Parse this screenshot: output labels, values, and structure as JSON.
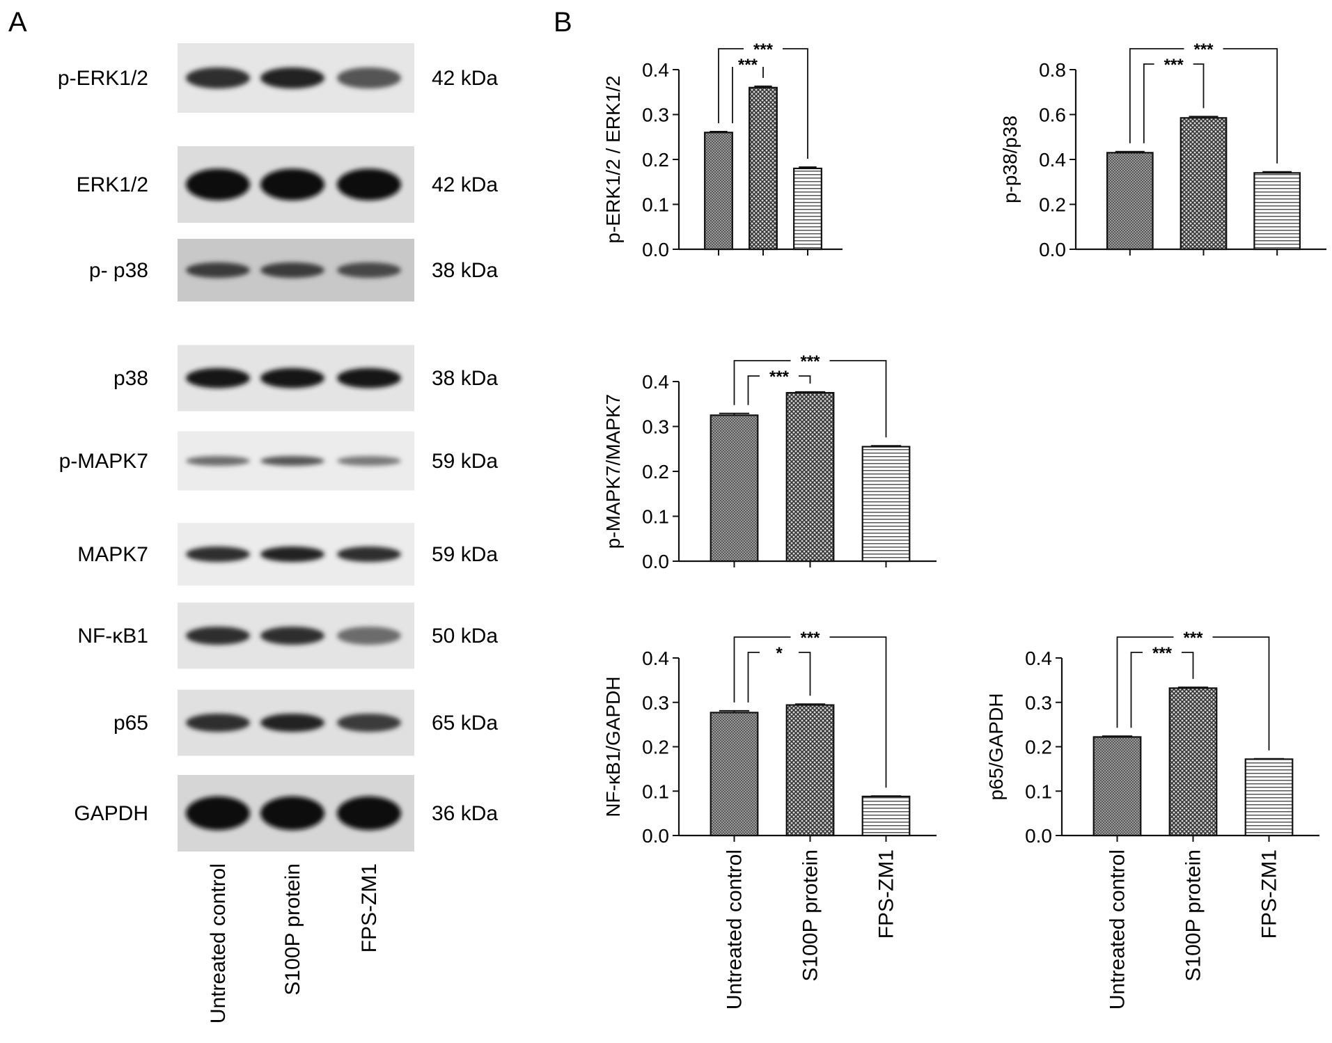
{
  "panel_a": {
    "letter": "A",
    "rows": [
      {
        "protein": "p-ERK1/2",
        "size": "42 kDa",
        "bands": [
          0.85,
          0.9,
          0.7
        ],
        "thick": 0.55,
        "bg": "#e6e6e6"
      },
      {
        "protein": "ERK1/2",
        "size": "42 kDa",
        "bands": [
          1.0,
          1.0,
          1.0
        ],
        "thick": 0.75,
        "bg": "#dcdcdc"
      },
      {
        "protein": "p- p38",
        "size": "38 kDa",
        "bands": [
          0.8,
          0.8,
          0.75
        ],
        "thick": 0.45,
        "bg": "#c8c8c8"
      },
      {
        "protein": "p38",
        "size": "38 kDa",
        "bands": [
          0.95,
          0.95,
          0.95
        ],
        "thick": 0.55,
        "bg": "#e4e4e4"
      },
      {
        "protein": "p-MAPK7",
        "size": "59 kDa",
        "bands": [
          0.6,
          0.7,
          0.55
        ],
        "thick": 0.3,
        "bg": "#ececec"
      },
      {
        "protein": "MAPK7",
        "size": "59 kDa",
        "bands": [
          0.85,
          0.9,
          0.85
        ],
        "thick": 0.45,
        "bg": "#ececec"
      },
      {
        "protein": "NF-κB1",
        "size": "50 kDa",
        "bands": [
          0.85,
          0.85,
          0.6
        ],
        "thick": 0.5,
        "bg": "#e4e4e4"
      },
      {
        "protein": "p65",
        "size": "65 kDa",
        "bands": [
          0.85,
          0.9,
          0.8
        ],
        "thick": 0.5,
        "bg": "#e0e0e0"
      },
      {
        "protein": "GAPDH",
        "size": "36 kDa",
        "bands": [
          1.0,
          1.0,
          1.0
        ],
        "thick": 0.8,
        "bg": "#d6d6d6"
      }
    ],
    "lanes": [
      "Untreated control",
      "S100P protein",
      "FPS-ZM1"
    ]
  },
  "panel_b": {
    "letter": "B"
  },
  "chart_data": [
    {
      "type": "bar",
      "categories": [
        "Untreated control",
        "S100P protein",
        "FPS-ZM1"
      ],
      "values": [
        0.26,
        0.36,
        0.18
      ],
      "errors": [
        0.002,
        0.003,
        0.003
      ],
      "ylabel": "p-ERK1/2 / ERK1/2",
      "ylim": [
        0,
        0.4
      ],
      "yticks": [
        "0.0",
        "0.1",
        "0.2",
        "0.3",
        "0.4"
      ],
      "tick_values": [
        0,
        0.1,
        0.2,
        0.3,
        0.4
      ],
      "patterns": [
        "fine",
        "coarse",
        "horiz"
      ],
      "significance": [
        {
          "from": 0,
          "to": 1,
          "label": "***"
        },
        {
          "from": 0,
          "to": 2,
          "label": "***"
        }
      ],
      "show_xlabels": false
    },
    {
      "type": "bar",
      "categories": [
        "Untreated control",
        "S100P protein",
        "FPS-ZM1"
      ],
      "values": [
        0.43,
        0.585,
        0.34
      ],
      "errors": [
        0.005,
        0.006,
        0.005
      ],
      "ylabel": "p-p38/p38",
      "ylim": [
        0,
        0.8
      ],
      "yticks": [
        "0.0",
        "0.2",
        "0.4",
        "0.6",
        "0.8"
      ],
      "tick_values": [
        0,
        0.2,
        0.4,
        0.6,
        0.8
      ],
      "patterns": [
        "fine",
        "coarse",
        "horiz"
      ],
      "significance": [
        {
          "from": 0,
          "to": 1,
          "label": "***"
        },
        {
          "from": 0,
          "to": 2,
          "label": "***"
        }
      ],
      "show_xlabels": false
    },
    {
      "type": "bar",
      "categories": [
        "Untreated control",
        "S100P protein",
        "FPS-ZM1"
      ],
      "values": [
        0.325,
        0.375,
        0.255
      ],
      "errors": [
        0.004,
        0.002,
        0.002
      ],
      "ylabel": "p-MAPK7/MAPK7",
      "ylim": [
        0,
        0.4
      ],
      "yticks": [
        "0.0",
        "0.1",
        "0.2",
        "0.3",
        "0.4"
      ],
      "tick_values": [
        0,
        0.1,
        0.2,
        0.3,
        0.4
      ],
      "patterns": [
        "fine",
        "coarse",
        "horiz"
      ],
      "significance": [
        {
          "from": 0,
          "to": 1,
          "label": "***"
        },
        {
          "from": 0,
          "to": 2,
          "label": "***"
        }
      ],
      "show_xlabels": false
    },
    {
      "type": "bar",
      "categories": [
        "Untreated control",
        "S100P protein",
        "FPS-ZM1"
      ],
      "values": [
        0.277,
        0.294,
        0.088
      ],
      "errors": [
        0.004,
        0.002,
        0.001
      ],
      "ylabel": "NF-κB1/GAPDH",
      "ylim": [
        0,
        0.4
      ],
      "yticks": [
        "0.0",
        "0.1",
        "0.2",
        "0.3",
        "0.4"
      ],
      "tick_values": [
        0,
        0.1,
        0.2,
        0.3,
        0.4
      ],
      "patterns": [
        "fine",
        "coarse",
        "horiz"
      ],
      "significance": [
        {
          "from": 0,
          "to": 1,
          "label": "*"
        },
        {
          "from": 0,
          "to": 2,
          "label": "***"
        }
      ],
      "show_xlabels": true
    },
    {
      "type": "bar",
      "categories": [
        "Untreated control",
        "S100P protein",
        "FPS-ZM1"
      ],
      "values": [
        0.222,
        0.332,
        0.172
      ],
      "errors": [
        0.002,
        0.002,
        0.001
      ],
      "ylabel": "p65/GAPDH",
      "ylim": [
        0,
        0.4
      ],
      "yticks": [
        "0.0",
        "0.1",
        "0.2",
        "0.3",
        "0.4"
      ],
      "tick_values": [
        0,
        0.1,
        0.2,
        0.3,
        0.4
      ],
      "patterns": [
        "fine",
        "coarse",
        "horiz"
      ],
      "significance": [
        {
          "from": 0,
          "to": 1,
          "label": "***"
        },
        {
          "from": 0,
          "to": 2,
          "label": "***"
        }
      ],
      "show_xlabels": true
    }
  ]
}
